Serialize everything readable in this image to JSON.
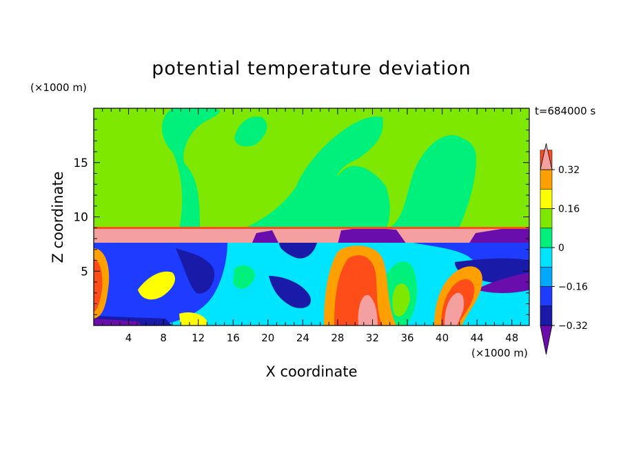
{
  "chart_data": {
    "type": "heatmap",
    "title": "potential temperature deviation",
    "xlabel": "X coordinate",
    "ylabel": "Z coordinate",
    "x_unit": "(×1000 m)",
    "y_unit": "(×1000 m)",
    "time_label": "t=684000 s",
    "xlim": [
      0,
      50
    ],
    "ylim": [
      0,
      20
    ],
    "x_ticks": [
      4,
      8,
      12,
      16,
      20,
      24,
      28,
      32,
      36,
      40,
      44,
      48
    ],
    "y_ticks": [
      5,
      10,
      15
    ],
    "colorbar": {
      "levels": [
        -0.4,
        -0.32,
        -0.24,
        -0.16,
        -0.08,
        0,
        0.08,
        0.16,
        0.24,
        0.32,
        0.4
      ],
      "labeled_ticks": [
        0.32,
        0.16,
        0,
        -0.16,
        -0.32
      ],
      "tick_labels": [
        "0.32",
        "0.16",
        "0",
        "−0.16",
        "−0.32"
      ],
      "colors": [
        "#6a0dad",
        "#1a1aa8",
        "#1e3cff",
        "#00a8ff",
        "#00e5ff",
        "#00f07c",
        "#7fe800",
        "#ffff00",
        "#ffa000",
        "#ff4d1a",
        "#f4a0a0"
      ],
      "under_color": "#6a0dad",
      "over_color": "#f4a0a0"
    }
  }
}
